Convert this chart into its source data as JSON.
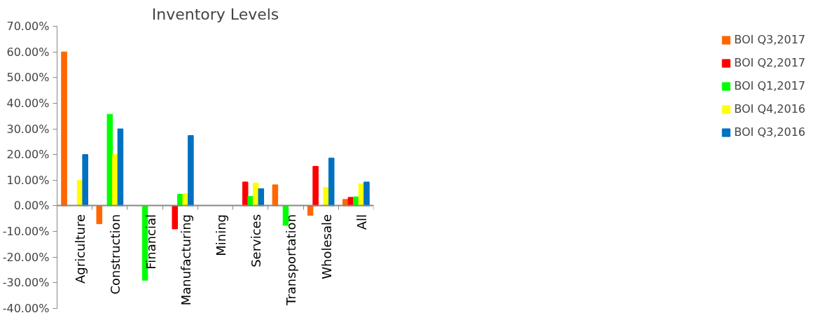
{
  "chart_data": {
    "type": "bar",
    "title": "Inventory Levels",
    "categories": [
      "Agriculture",
      "Construction",
      "Financial",
      "Manufacturing",
      "Mining",
      "Services",
      "Transportation",
      "Wholesale",
      "All"
    ],
    "series": [
      {
        "name": "BOI Q3,2017",
        "color": "#ff6600",
        "values": [
          60,
          -7,
          null,
          null,
          null,
          null,
          8.2,
          -3.7,
          2.5
        ]
      },
      {
        "name": "BOI Q2,2017",
        "color": "#ff0000",
        "values": [
          null,
          null,
          null,
          -9,
          null,
          9.3,
          null,
          15.4,
          3.3
        ]
      },
      {
        "name": "BOI Q1,2017",
        "color": "#00ff00",
        "values": [
          null,
          35.7,
          -29,
          4.5,
          null,
          3.7,
          -7.6,
          null,
          3.5
        ]
      },
      {
        "name": "BOI Q4,2016",
        "color": "#ffff00",
        "values": [
          10,
          20,
          null,
          4.8,
          null,
          8.9,
          null,
          7.2,
          8.6
        ]
      },
      {
        "name": "BOI Q3,2016",
        "color": "#0070c0",
        "values": [
          20,
          30,
          null,
          27.4,
          null,
          6.7,
          null,
          18.6,
          9.3
        ]
      }
    ],
    "ylim": [
      -40,
      70
    ],
    "yticks": [
      {
        "value": -40,
        "label": "-40.00%"
      },
      {
        "value": -30,
        "label": "-30.00%"
      },
      {
        "value": -20,
        "label": "-20.00%"
      },
      {
        "value": -10,
        "label": "-10.00%"
      },
      {
        "value": 0,
        "label": "0.00%"
      },
      {
        "value": 10,
        "label": "10.00%"
      },
      {
        "value": 20,
        "label": "20.00%"
      },
      {
        "value": 30,
        "label": "30.00%"
      },
      {
        "value": 40,
        "label": "40.00%"
      },
      {
        "value": 50,
        "label": "50.00%"
      },
      {
        "value": 60,
        "label": "60.00%"
      },
      {
        "value": 70,
        "label": "70.00%"
      }
    ],
    "grid": false,
    "legend": "right"
  }
}
